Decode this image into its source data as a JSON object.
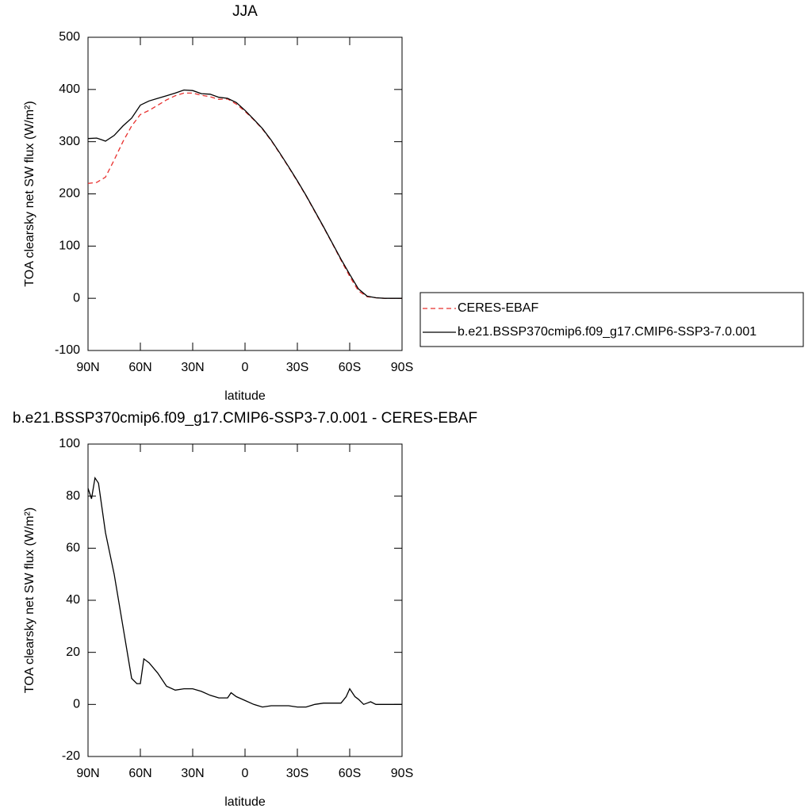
{
  "chart_data": [
    {
      "type": "line",
      "title": "JJA",
      "xlabel": "latitude",
      "ylabel": "TOA clearsky net SW flux (W/m²)",
      "x": [
        90,
        85,
        80,
        75,
        70,
        65,
        60,
        55,
        50,
        45,
        40,
        35,
        30,
        25,
        20,
        15,
        10,
        5,
        0,
        -5,
        -10,
        -15,
        -20,
        -25,
        -30,
        -35,
        -40,
        -45,
        -50,
        -55,
        -60,
        -65,
        -70,
        -75,
        -80,
        -85,
        -90
      ],
      "series": [
        {
          "name": "CERES-EBAF",
          "color": "#e8302e",
          "dashed": true,
          "values": [
            220,
            222,
            232,
            265,
            300,
            330,
            352,
            360,
            370,
            380,
            388,
            393,
            393,
            389,
            386,
            381,
            382,
            372,
            358,
            342,
            324,
            302,
            277,
            251,
            224,
            196,
            166,
            136,
            105,
            73,
            42,
            14,
            3,
            1,
            0,
            0,
            0
          ]
        },
        {
          "name": "b.e21.BSSP370cmip6.f09_g17.CMIP6-SSP3-7.0.001",
          "color": "#000000",
          "dashed": false,
          "values": [
            306,
            307,
            301,
            312,
            330,
            345,
            370,
            378,
            383,
            388,
            393,
            399,
            398,
            392,
            391,
            385,
            383,
            375,
            360,
            343,
            325,
            303,
            278,
            252,
            225,
            197,
            167,
            137,
            106,
            75,
            46,
            18,
            4,
            1,
            0,
            0,
            0
          ]
        }
      ],
      "xlim": [
        90,
        -90
      ],
      "xticks": [
        {
          "value": 90,
          "label": "90N"
        },
        {
          "value": 60,
          "label": "60N"
        },
        {
          "value": 30,
          "label": "30N"
        },
        0,
        {
          "value": -30,
          "label": "30S"
        },
        {
          "value": -60,
          "label": "60S"
        },
        {
          "value": -90,
          "label": "90S"
        }
      ],
      "ylim": [
        -100,
        500
      ],
      "yticks": [
        -100,
        0,
        100,
        200,
        300,
        400,
        500
      ],
      "legend": "right"
    },
    {
      "type": "line",
      "title": "b.e21.BSSP370cmip6.f09_g17.CMIP6-SSP3-7.0.001 - CERES-EBAF",
      "xlabel": "latitude",
      "ylabel": "TOA clearsky net SW flux (W/m²)",
      "x": [
        90,
        88,
        86,
        84,
        80,
        75,
        70,
        65,
        62,
        60,
        58,
        55,
        50,
        45,
        40,
        35,
        30,
        25,
        20,
        15,
        10,
        8,
        5,
        0,
        -5,
        -10,
        -15,
        -20,
        -25,
        -30,
        -35,
        -40,
        -45,
        -50,
        -55,
        -58,
        -60,
        -63,
        -65,
        -68,
        -70,
        -72,
        -75,
        -80,
        -85,
        -90
      ],
      "series": [
        {
          "color": "#000000",
          "dashed": false,
          "values": [
            83,
            79,
            87,
            85,
            66,
            50,
            30,
            10,
            8,
            8,
            17.5,
            16,
            12,
            7,
            5.5,
            6,
            6,
            5,
            3.5,
            2.5,
            2.5,
            4.5,
            3,
            1.5,
            0,
            -1,
            -0.5,
            -0.5,
            -0.5,
            -1,
            -1,
            0,
            0.5,
            0.5,
            0.5,
            3,
            6,
            3,
            2,
            0,
            0.5,
            1,
            0,
            0,
            0,
            0
          ]
        }
      ],
      "xlim": [
        90,
        -90
      ],
      "xticks": [
        {
          "value": 90,
          "label": "90N"
        },
        {
          "value": 60,
          "label": "60N"
        },
        {
          "value": 30,
          "label": "30N"
        },
        0,
        {
          "value": -30,
          "label": "30S"
        },
        {
          "value": -60,
          "label": "60S"
        },
        {
          "value": -90,
          "label": "90S"
        }
      ],
      "ylim": [
        -20,
        100
      ],
      "yticks": [
        -20,
        0,
        20,
        40,
        60,
        80,
        100
      ]
    }
  ]
}
